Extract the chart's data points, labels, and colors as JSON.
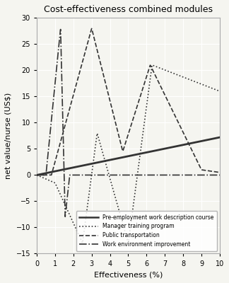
{
  "title": "Cost-effectiveness combined modules",
  "xlabel": "Effectiveness (%)",
  "ylabel": "net value/nurse (US$)",
  "xlim": [
    0,
    10
  ],
  "ylim": [
    -15,
    30
  ],
  "xticks": [
    0,
    1,
    2,
    3,
    4,
    5,
    6,
    7,
    8,
    9,
    10
  ],
  "yticks": [
    -15,
    -10,
    -5,
    0,
    5,
    10,
    15,
    20,
    25,
    30
  ],
  "background_color": "#f5f5f0",
  "line_color": "#333333",
  "legend_entries": [
    "Pre-employment work description course",
    "Manager training program",
    "Public transportation",
    "Work environment improvement"
  ]
}
